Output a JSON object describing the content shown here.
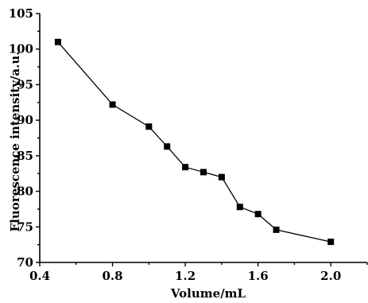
{
  "chart_data": {
    "type": "line",
    "xlabel": "Volume/mL",
    "ylabel": "Fluorescence intensity/a.u.",
    "xlim": [
      0.4,
      2.2
    ],
    "ylim": [
      70,
      105
    ],
    "xticks": [
      0.4,
      0.8,
      1.2,
      1.6,
      2.0
    ],
    "xtick_labels": [
      "0.4",
      "0.8",
      "1.2",
      "1.6",
      "2.0"
    ],
    "yticks": [
      70,
      75,
      80,
      85,
      90,
      95,
      100,
      105
    ],
    "ytick_labels": [
      "70",
      "75",
      "80",
      "85",
      "90",
      "95",
      "100",
      "105"
    ],
    "grid": false,
    "marker": "square",
    "series": [
      {
        "x": [
          0.5,
          0.8,
          1.0,
          1.1,
          1.2,
          1.3,
          1.4,
          1.5,
          1.6,
          1.7,
          2.0
        ],
        "y": [
          101.0,
          92.2,
          89.1,
          86.3,
          83.4,
          82.7,
          82.0,
          77.8,
          76.8,
          74.6,
          72.9
        ]
      }
    ]
  }
}
